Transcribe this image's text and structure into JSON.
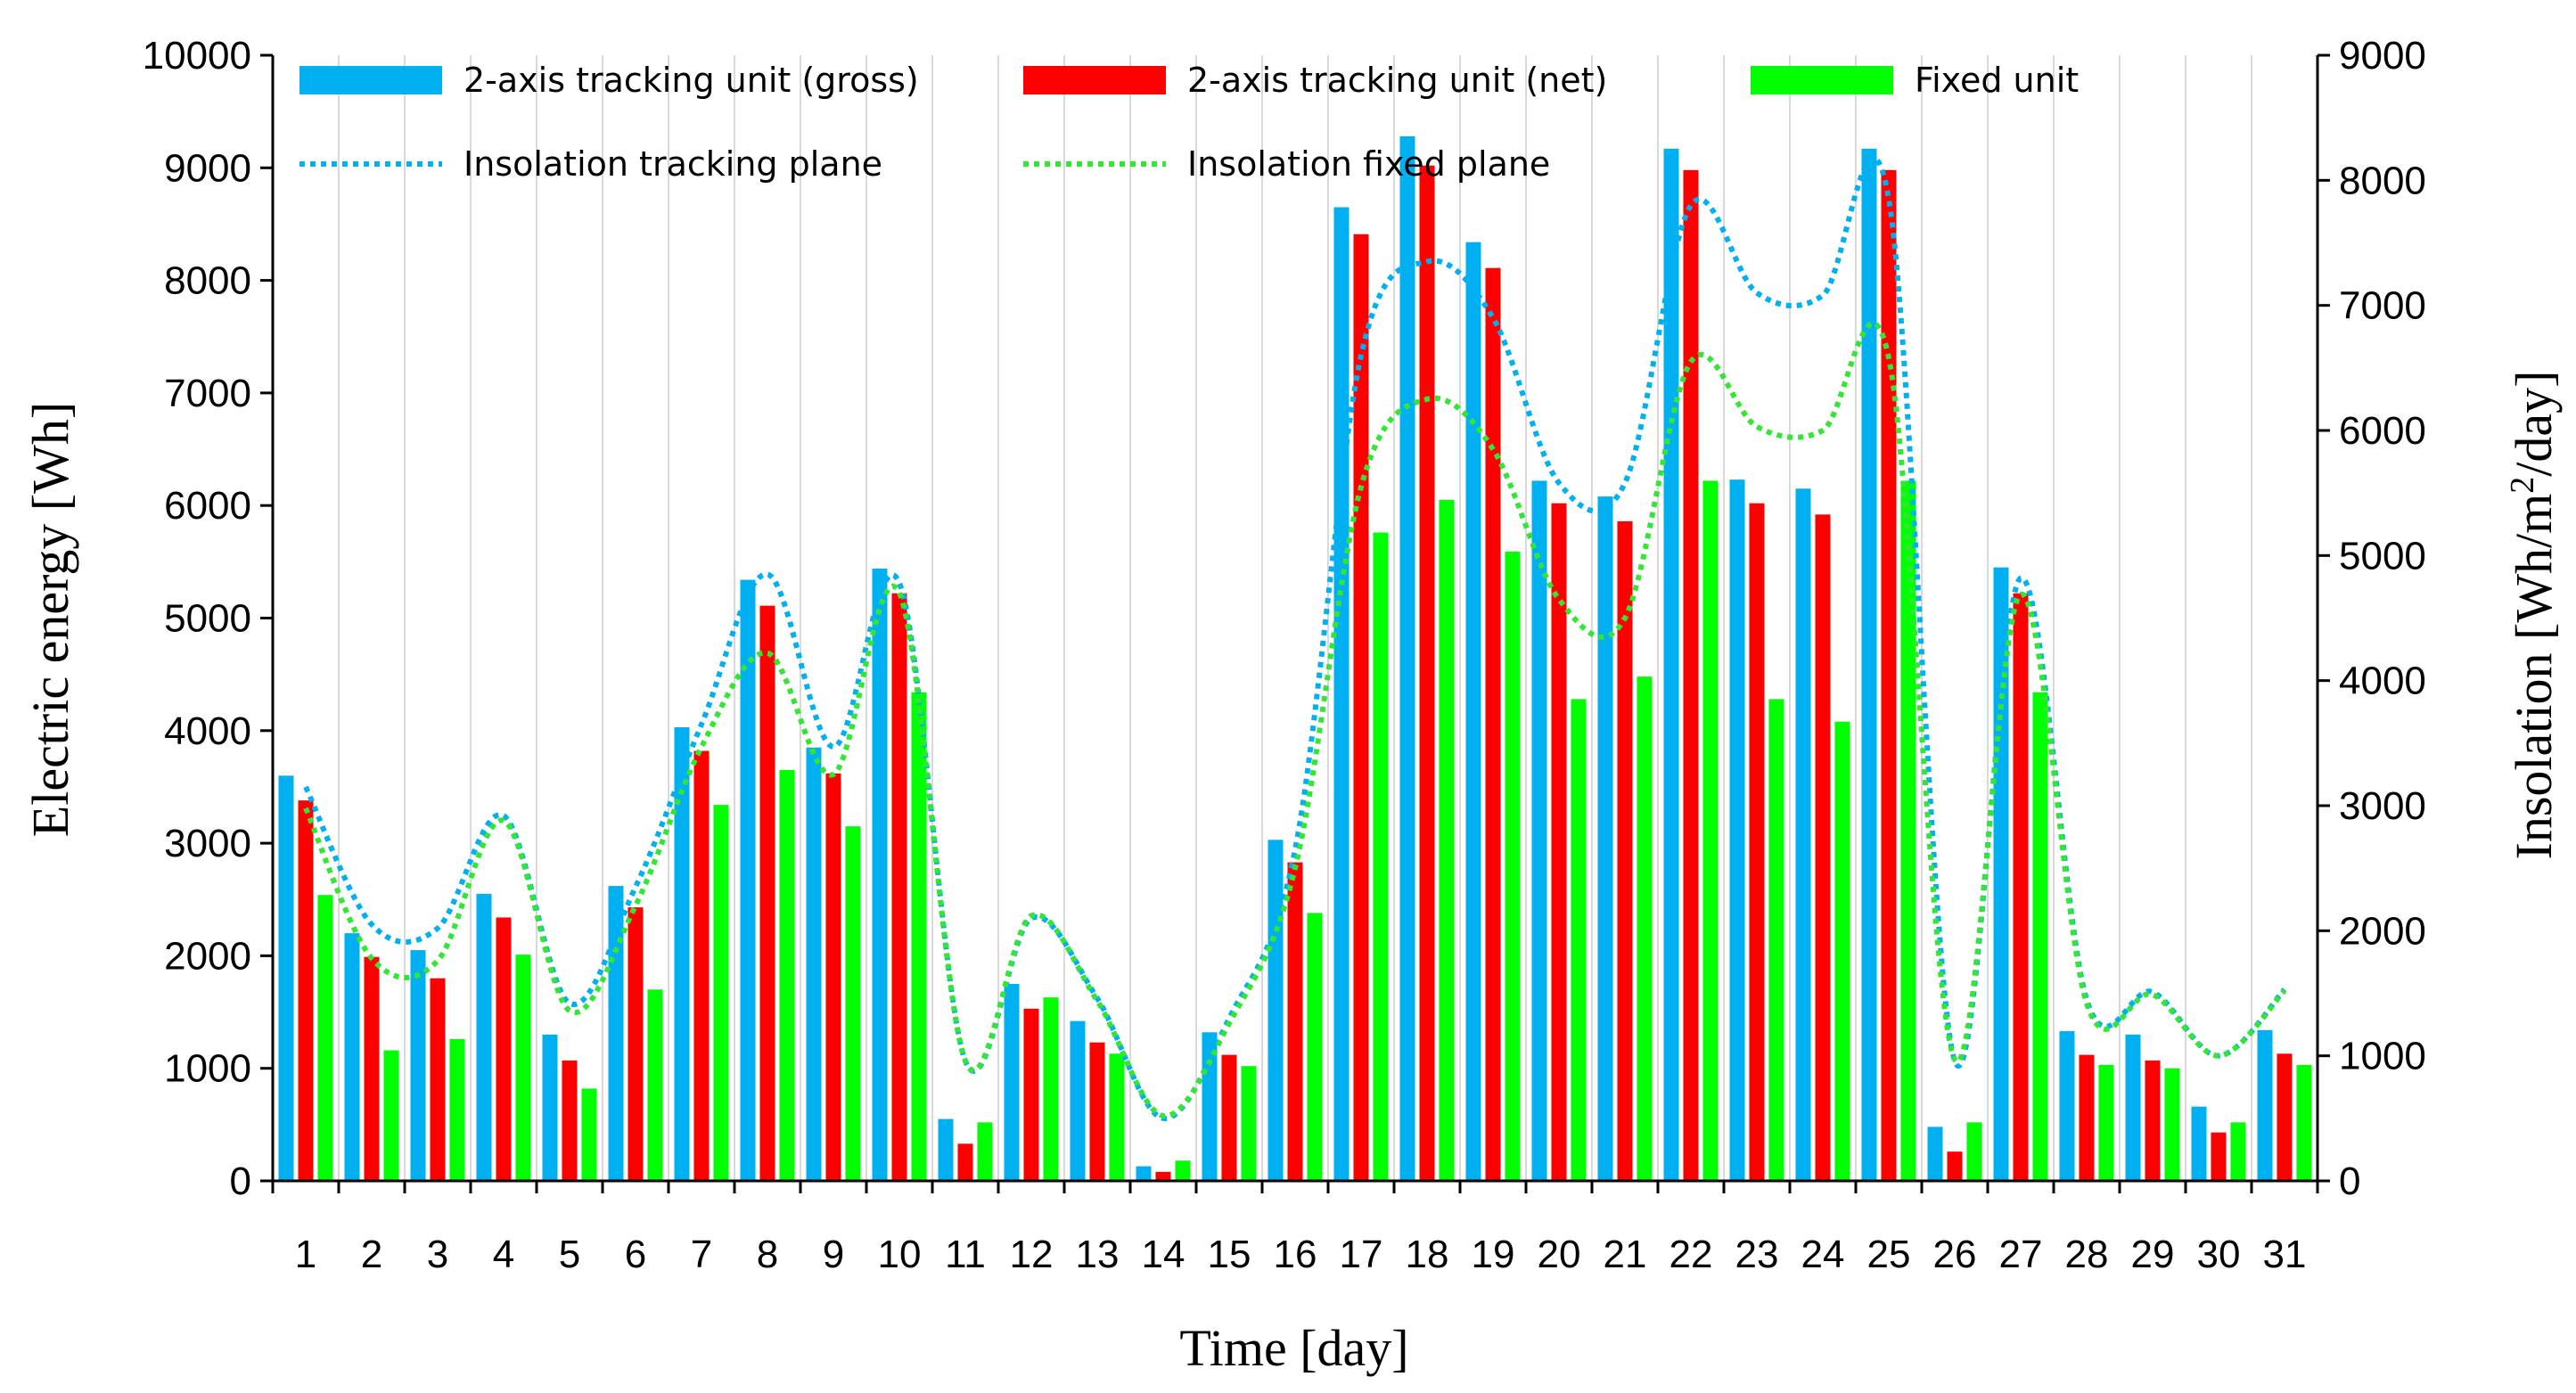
{
  "chart_data": {
    "type": "bar",
    "xlabel": "Time [day]",
    "ylabel": "Electric energy [Wh]",
    "y2label_parts": [
      "Insolation [Wh/m",
      "2",
      "/day]"
    ],
    "ylim": [
      0,
      10000
    ],
    "y2lim": [
      0,
      9000
    ],
    "yticks": [
      0,
      1000,
      2000,
      3000,
      4000,
      5000,
      6000,
      7000,
      8000,
      9000,
      10000
    ],
    "y2ticks": [
      0,
      1000,
      2000,
      3000,
      4000,
      5000,
      6000,
      7000,
      8000,
      9000
    ],
    "grid": "vertical",
    "legend_position": "top",
    "categories": [
      "1",
      "2",
      "3",
      "4",
      "5",
      "6",
      "7",
      "8",
      "9",
      "10",
      "11",
      "12",
      "13",
      "14",
      "15",
      "16",
      "17",
      "18",
      "19",
      "20",
      "21",
      "22",
      "23",
      "24",
      "25",
      "26",
      "27",
      "28",
      "29",
      "30",
      "31"
    ],
    "series": [
      {
        "name": "2-axis tracking unit (gross)",
        "kind": "bar",
        "axis": "left",
        "color": "#00B0F0",
        "values": [
          3600,
          2200,
          2050,
          2550,
          1300,
          2620,
          4030,
          5340,
          3850,
          5440,
          550,
          1750,
          1420,
          130,
          1320,
          3030,
          8650,
          9280,
          8340,
          6220,
          6080,
          9170,
          6230,
          6150,
          9170,
          480,
          5450,
          1330,
          1300,
          660,
          1340
        ]
      },
      {
        "name": "2-axis tracking unit (net)",
        "kind": "bar",
        "axis": "left",
        "color": "#FF0000",
        "values": [
          3380,
          1990,
          1800,
          2340,
          1070,
          2430,
          3820,
          5110,
          3620,
          5220,
          330,
          1530,
          1230,
          80,
          1120,
          2830,
          8410,
          9020,
          8110,
          6020,
          5860,
          8980,
          6020,
          5920,
          8980,
          260,
          5220,
          1120,
          1070,
          430,
          1130
        ]
      },
      {
        "name": "Fixed unit",
        "kind": "bar",
        "axis": "left",
        "color": "#00FF00",
        "values": [
          2540,
          1160,
          1260,
          2010,
          820,
          1700,
          3340,
          3650,
          3150,
          4340,
          520,
          1630,
          1130,
          180,
          1020,
          2380,
          5760,
          6050,
          5590,
          4280,
          4480,
          6220,
          4280,
          4080,
          6220,
          520,
          4340,
          1030,
          1000,
          520,
          1030
        ]
      },
      {
        "name": "Insolation tracking plane",
        "kind": "line",
        "axis": "right",
        "color": "#00B0F0",
        "values": [
          3150,
          2050,
          2020,
          2920,
          1420,
          2350,
          3650,
          4850,
          3470,
          4780,
          960,
          2100,
          1460,
          500,
          1300,
          2650,
          6600,
          7350,
          6900,
          5580,
          5580,
          7800,
          7100,
          7080,
          7850,
          960,
          4820,
          1450,
          1510,
          1000,
          1530
        ]
      },
      {
        "name": "Insolation fixed plane",
        "kind": "line",
        "axis": "right",
        "color": "#33E633",
        "values": [
          2980,
          1780,
          1760,
          2880,
          1360,
          2200,
          3470,
          4220,
          3250,
          4700,
          960,
          2120,
          1440,
          520,
          1260,
          2500,
          5550,
          6250,
          5850,
          4650,
          4500,
          6550,
          6030,
          6000,
          6580,
          970,
          4690,
          1420,
          1490,
          1000,
          1520
        ]
      }
    ]
  }
}
